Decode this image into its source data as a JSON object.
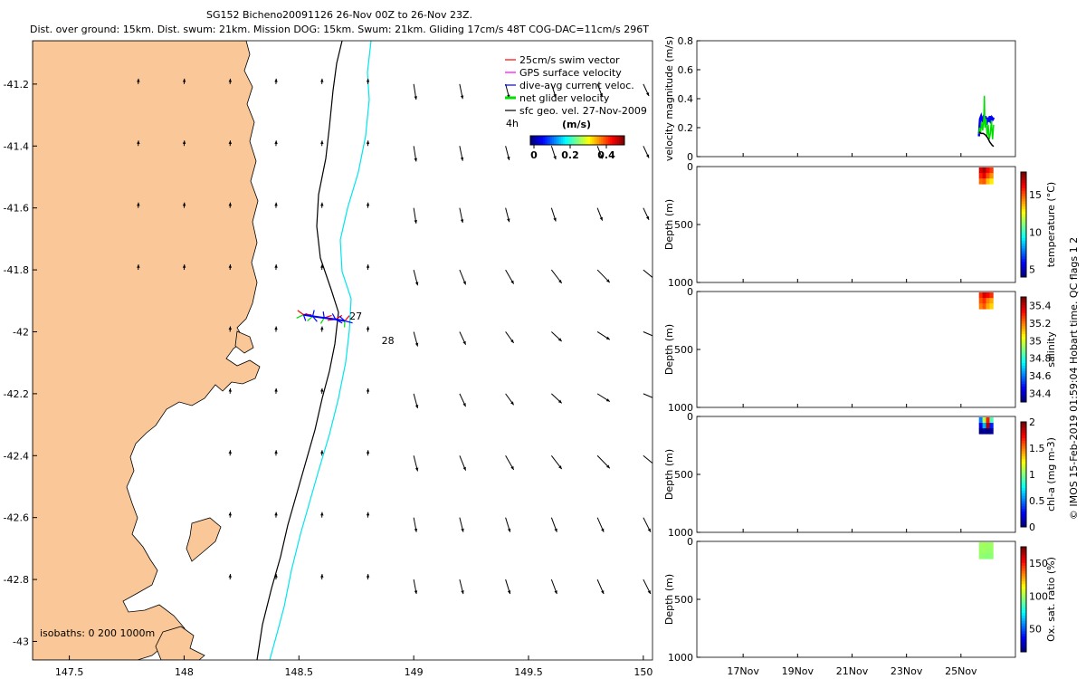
{
  "header": {
    "line1": "SG152 Bicheno20091126 26-Nov 00Z to 26-Nov 23Z.",
    "line2": "Dist. over ground: 15km. Dist. swum: 21km. Mission DOG: 15km. Swum: 21km. Gliding 17cm/s 48T COG-DAC=11cm/s 296T"
  },
  "side_note": "© IMOS 15-Feb-2019 01:59:04 Hobart time. QC flags 1  2",
  "colors": {
    "land": "#FAC898",
    "isobath_200": "#000000",
    "isobath_1000": "#00E5EE",
    "swim_vector": "#FF0000",
    "gps_velocity": "#FF00FF",
    "dac": "#0000FF",
    "net_velocity": "#00DD00"
  },
  "map": {
    "lon_ticks": [
      "147.5",
      "148",
      "148.5",
      "149",
      "149.5",
      "150"
    ],
    "lon_values": [
      147.5,
      148,
      148.5,
      149,
      149.5,
      150
    ],
    "lat_ticks": [
      "-41.2",
      "-41.4",
      "-41.6",
      "-41.8",
      "-42",
      "-42.2",
      "-42.4",
      "-42.6",
      "-42.8",
      "-43"
    ],
    "lat_values": [
      -41.2,
      -41.4,
      -41.6,
      -41.8,
      -42,
      -42.2,
      -42.4,
      -42.6,
      -42.8,
      -43
    ],
    "lon_range": [
      147.34,
      150.04
    ],
    "lat_range": [
      -43.06,
      -41.06
    ],
    "isobaths_label": "isobaths: 0   200   1000m",
    "track_labels": [
      {
        "text": "27",
        "lon": 148.72,
        "lat": -41.96
      },
      {
        "text": "28",
        "lon": 148.86,
        "lat": -42.04
      }
    ],
    "glider_track": {
      "lon": [
        148.52,
        148.56,
        148.61,
        148.66,
        148.7
      ],
      "lat": [
        -41.945,
        -41.95,
        -41.955,
        -41.96,
        -41.965
      ]
    },
    "legend": {
      "items": [
        "25cm/s swim vector",
        "GPS surface velocity",
        "dive-avg current veloc.",
        "net glider velocity",
        "sfc geo. vel. 27-Nov-2009"
      ],
      "scale_label": "4h",
      "colorbar_title": "(m/s)",
      "colorbar_ticks": [
        "0",
        "0.2",
        "0.4"
      ],
      "colorbar_tick_values": [
        0,
        0.2,
        0.4
      ],
      "colorbar_range": [
        -0.02,
        0.5
      ]
    }
  },
  "chart_data": [
    {
      "type": "line",
      "title": "",
      "ylabel": "velocity magnitude (m/s)",
      "ylim": [
        0,
        0.8
      ],
      "yticks": [
        "0",
        "0.2",
        "0.4",
        "0.6",
        "0.8"
      ],
      "ytick_values": [
        0,
        0.2,
        0.4,
        0.6,
        0.8
      ],
      "series": [
        {
          "color": "#0000FF",
          "x": [
            25.66,
            25.7,
            25.74,
            25.78,
            25.82,
            25.86,
            25.9,
            25.94,
            25.98,
            26.02,
            26.06,
            26.1,
            26.14,
            26.18,
            26.2
          ],
          "y": [
            0.14,
            0.26,
            0.28,
            0.25,
            0.27,
            0.24,
            0.28,
            0.22,
            0.27,
            0.24,
            0.28,
            0.23,
            0.27,
            0.26,
            0.27
          ]
        },
        {
          "color": "#00DD00",
          "x": [
            25.66,
            25.68,
            25.72,
            25.76,
            25.8,
            25.84,
            25.86,
            25.88,
            25.92,
            25.96,
            26.0,
            26.04,
            26.08,
            26.12,
            26.16,
            26.2
          ],
          "y": [
            0.16,
            0.2,
            0.16,
            0.24,
            0.18,
            0.26,
            0.42,
            0.2,
            0.26,
            0.14,
            0.22,
            0.12,
            0.16,
            0.25,
            0.12,
            0.22
          ]
        },
        {
          "color": "#000000",
          "x": [
            25.66,
            25.74,
            25.82,
            25.9,
            25.98,
            26.06,
            26.14,
            26.2
          ],
          "y": [
            0.17,
            0.16,
            0.16,
            0.15,
            0.13,
            0.1,
            0.08,
            0.07
          ]
        }
      ]
    },
    {
      "type": "heatmap",
      "ylabel": "Depth (m)",
      "ylim": [
        1000,
        0
      ],
      "yticks": [
        "0",
        "500",
        "1000"
      ],
      "ytick_values": [
        0,
        500,
        1000
      ],
      "colorbar": {
        "label": "temperature (°C)",
        "range": [
          4,
          18
        ],
        "ticks": [
          "5",
          "10",
          "15"
        ],
        "tick_values": [
          5,
          10,
          15
        ]
      },
      "x_range": [
        25.66,
        26.18
      ],
      "depth_range": [
        0,
        150
      ],
      "value_rows": [
        [
          16.8,
          17.4,
          16.2,
          15.5
        ],
        [
          15.9,
          16.6,
          15.2,
          14.3
        ],
        [
          14.8,
          15.1,
          13.6,
          13.0
        ]
      ]
    },
    {
      "type": "heatmap",
      "ylabel": "Depth (m)",
      "ylim": [
        1000,
        0
      ],
      "yticks": [
        "0",
        "500",
        "1000"
      ],
      "ytick_values": [
        0,
        500,
        1000
      ],
      "colorbar": {
        "label": "salinity",
        "range": [
          34.3,
          35.5
        ],
        "ticks": [
          "34.4",
          "34.6",
          "34.8",
          "35",
          "35.2",
          "35.4"
        ],
        "tick_values": [
          34.4,
          34.6,
          34.8,
          35.0,
          35.2,
          35.4
        ]
      },
      "x_range": [
        25.66,
        26.18
      ],
      "depth_range": [
        0,
        150
      ],
      "value_rows": [
        [
          35.3,
          35.4,
          35.35,
          35.3
        ],
        [
          35.25,
          35.3,
          35.2,
          35.15
        ],
        [
          35.2,
          35.25,
          35.15,
          35.1
        ]
      ]
    },
    {
      "type": "heatmap",
      "ylabel": "Depth (m)",
      "ylim": [
        1000,
        0
      ],
      "yticks": [
        "0",
        "500",
        "1000"
      ],
      "ytick_values": [
        0,
        500,
        1000
      ],
      "colorbar": {
        "label": "chl-a (mg m-3)",
        "range": [
          0,
          2
        ],
        "ticks": [
          "0",
          "0.5",
          "1",
          "1.5",
          "2"
        ],
        "tick_values": [
          0,
          0.5,
          1,
          1.5,
          2
        ]
      },
      "x_range": [
        25.66,
        26.18
      ],
      "depth_range": [
        0,
        150
      ],
      "value_rows": [
        [
          0.5,
          1.1,
          1.7,
          0.9
        ],
        [
          0.2,
          0.6,
          1.9,
          0.3
        ],
        [
          0.0,
          0.05,
          0.0,
          0.05
        ]
      ]
    },
    {
      "type": "heatmap",
      "ylabel": "Depth (m)",
      "ylim": [
        1000,
        0
      ],
      "yticks": [
        "0",
        "500",
        "1000"
      ],
      "ytick_values": [
        0,
        500,
        1000
      ],
      "colorbar": {
        "label": "Ox. sat. ratio (%)",
        "range": [
          15,
          175
        ],
        "ticks": [
          "50",
          "100",
          "150"
        ],
        "tick_values": [
          50,
          100,
          150
        ]
      },
      "x_range": [
        25.66,
        26.18
      ],
      "depth_range": [
        0,
        150
      ],
      "value_rows": [
        [
          100,
          101,
          99,
          100
        ],
        [
          99,
          100,
          98,
          99
        ],
        [
          98,
          97,
          96,
          97
        ]
      ]
    }
  ],
  "time_axis": {
    "ticks": [
      "17Nov",
      "19Nov",
      "21Nov",
      "23Nov",
      "25Nov"
    ],
    "tick_values": [
      17,
      19,
      21,
      23,
      25
    ],
    "range": [
      15.3,
      27.0
    ]
  }
}
